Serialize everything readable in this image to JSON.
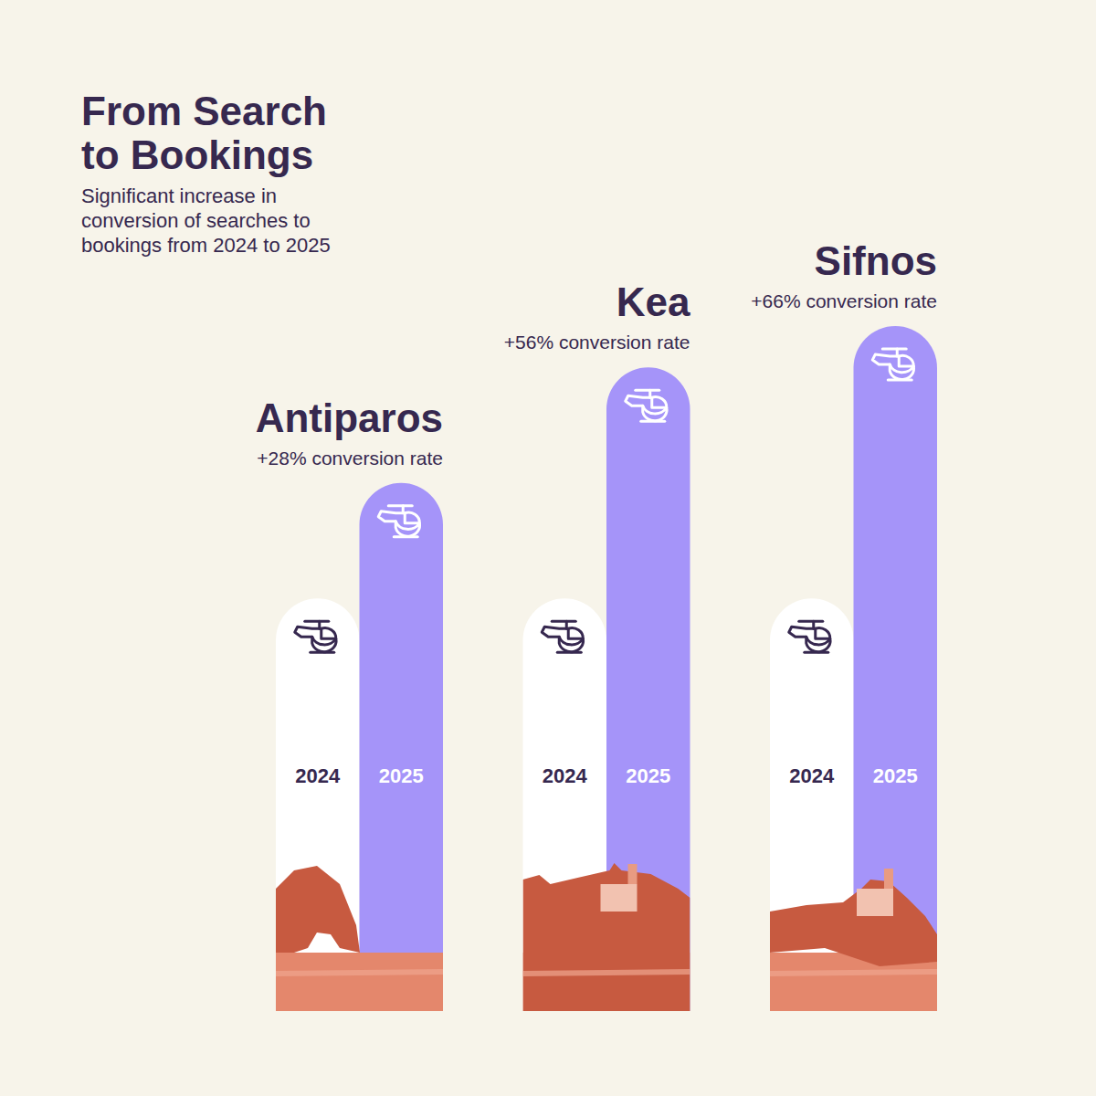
{
  "chart_data": {
    "type": "bar",
    "title": "From Search to Bookings",
    "subtitle": "Significant increase in conversion of searches to bookings from 2024 to 2025",
    "categories": [
      "Antiparos",
      "Kea",
      "Sifnos"
    ],
    "annotations": [
      "+28% conversion rate",
      "+56% conversion rate",
      "+66% conversion rate"
    ],
    "series": [
      {
        "name": "2024",
        "color": "#ffffff",
        "values": [
          100,
          100,
          100
        ]
      },
      {
        "name": "2025",
        "color": "#a594f9",
        "values": [
          128,
          156,
          166
        ]
      }
    ],
    "ylim": [
      0,
      170
    ],
    "tick_labels": false
  }
}
